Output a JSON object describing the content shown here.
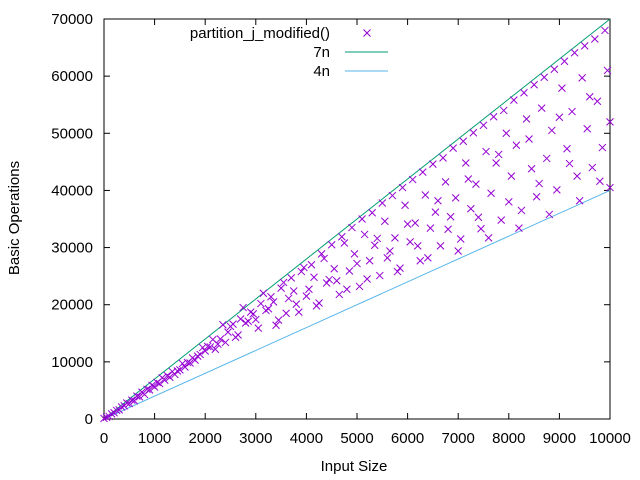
{
  "chart_data": {
    "type": "scatter",
    "title": "",
    "xlabel": "Input Size",
    "ylabel": "Basic Operations",
    "xlim": [
      0,
      10000
    ],
    "ylim": [
      0,
      70000
    ],
    "x_ticks": [
      "0",
      "1000",
      "2000",
      "3000",
      "4000",
      "5000",
      "6000",
      "7000",
      "8000",
      "9000",
      "10000"
    ],
    "y_ticks": [
      "0",
      "10000",
      "20000",
      "30000",
      "40000",
      "50000",
      "60000",
      "70000"
    ],
    "grid": false,
    "legend_position": "top-right",
    "series": [
      {
        "name": "partition_j_modified()",
        "kind": "scatter",
        "marker": "x",
        "color": "#9400d3",
        "points": [
          [
            0,
            100
          ],
          [
            100,
            450
          ],
          [
            200,
            1100
          ],
          [
            300,
            1600
          ],
          [
            400,
            2300
          ],
          [
            500,
            2700
          ],
          [
            600,
            3200
          ],
          [
            700,
            3900
          ],
          [
            800,
            4300
          ],
          [
            900,
            5100
          ],
          [
            1000,
            5600
          ],
          [
            1100,
            6200
          ],
          [
            1200,
            6800
          ],
          [
            1300,
            7300
          ],
          [
            1400,
            7800
          ],
          [
            1500,
            8600
          ],
          [
            1600,
            9100
          ],
          [
            1700,
            9800
          ],
          [
            1800,
            10300
          ],
          [
            1900,
            11300
          ],
          [
            2000,
            11900
          ],
          [
            2100,
            12600
          ],
          [
            2200,
            12200
          ],
          [
            2300,
            14000
          ],
          [
            2400,
            13400
          ],
          [
            2500,
            16200
          ],
          [
            2600,
            14300
          ],
          [
            2700,
            17500
          ],
          [
            2800,
            16800
          ],
          [
            2900,
            18700
          ],
          [
            3000,
            17400
          ],
          [
            3100,
            20200
          ],
          [
            3200,
            19000
          ],
          [
            3300,
            21400
          ],
          [
            3400,
            16400
          ],
          [
            3500,
            22900
          ],
          [
            3600,
            18500
          ],
          [
            3700,
            24700
          ],
          [
            3800,
            20100
          ],
          [
            3900,
            25800
          ],
          [
            4000,
            21500
          ],
          [
            4100,
            27000
          ],
          [
            4200,
            19800
          ],
          [
            4300,
            28900
          ],
          [
            4400,
            23800
          ],
          [
            4500,
            30500
          ],
          [
            4600,
            24200
          ],
          [
            4700,
            31900
          ],
          [
            4800,
            22700
          ],
          [
            4900,
            33500
          ],
          [
            5000,
            27200
          ],
          [
            5100,
            35000
          ],
          [
            5200,
            24500
          ],
          [
            5300,
            36100
          ],
          [
            5400,
            31600
          ],
          [
            5500,
            37800
          ],
          [
            5600,
            28200
          ],
          [
            5700,
            39100
          ],
          [
            5800,
            25800
          ],
          [
            5900,
            40500
          ],
          [
            6000,
            34100
          ],
          [
            6100,
            41900
          ],
          [
            6200,
            30300
          ],
          [
            6300,
            43200
          ],
          [
            6400,
            28200
          ],
          [
            6500,
            44600
          ],
          [
            6600,
            38200
          ],
          [
            6700,
            45700
          ],
          [
            6800,
            33200
          ],
          [
            6900,
            47400
          ],
          [
            7000,
            29400
          ],
          [
            7100,
            48600
          ],
          [
            7200,
            42000
          ],
          [
            7300,
            50100
          ],
          [
            7400,
            35300
          ],
          [
            7500,
            51400
          ],
          [
            7600,
            31700
          ],
          [
            7700,
            52900
          ],
          [
            7800,
            46300
          ],
          [
            7900,
            54000
          ],
          [
            8000,
            38000
          ],
          [
            8100,
            55800
          ],
          [
            8200,
            33400
          ],
          [
            8300,
            57100
          ],
          [
            8400,
            49000
          ],
          [
            8500,
            58500
          ],
          [
            8600,
            41200
          ],
          [
            8700,
            59800
          ],
          [
            8800,
            35800
          ],
          [
            8900,
            61200
          ],
          [
            9000,
            52800
          ],
          [
            9100,
            62600
          ],
          [
            9200,
            44700
          ],
          [
            9300,
            64100
          ],
          [
            9400,
            38200
          ],
          [
            9500,
            65300
          ],
          [
            9600,
            56400
          ],
          [
            9700,
            66500
          ],
          [
            9800,
            41600
          ],
          [
            9900,
            68000
          ],
          [
            10000,
            40500
          ],
          [
            10000,
            52000
          ],
          [
            9950,
            61000
          ],
          [
            9850,
            47500
          ],
          [
            9750,
            55600
          ],
          [
            9650,
            44000
          ],
          [
            9550,
            50800
          ],
          [
            9450,
            59700
          ],
          [
            9350,
            42500
          ],
          [
            9250,
            53800
          ],
          [
            9150,
            47300
          ],
          [
            9050,
            57900
          ],
          [
            8950,
            40100
          ],
          [
            8850,
            50500
          ],
          [
            8750,
            45600
          ],
          [
            8650,
            54400
          ],
          [
            8550,
            38900
          ],
          [
            8450,
            43800
          ],
          [
            8350,
            52500
          ],
          [
            8250,
            36500
          ],
          [
            8150,
            47900
          ],
          [
            8050,
            42500
          ],
          [
            7950,
            50000
          ],
          [
            7850,
            34800
          ],
          [
            7750,
            44800
          ],
          [
            7650,
            39500
          ],
          [
            7550,
            46800
          ],
          [
            7450,
            33300
          ],
          [
            7350,
            41100
          ],
          [
            7250,
            36800
          ],
          [
            7150,
            44800
          ],
          [
            7050,
            31500
          ],
          [
            6950,
            38700
          ],
          [
            6850,
            35400
          ],
          [
            6750,
            41500
          ],
          [
            6650,
            30300
          ],
          [
            6550,
            36200
          ],
          [
            6450,
            33400
          ],
          [
            6350,
            39200
          ],
          [
            6250,
            27700
          ],
          [
            6150,
            34300
          ],
          [
            6050,
            31000
          ],
          [
            5950,
            37400
          ],
          [
            5850,
            26400
          ],
          [
            5750,
            31700
          ],
          [
            5650,
            29400
          ],
          [
            5550,
            34600
          ],
          [
            5450,
            25100
          ],
          [
            5350,
            30400
          ],
          [
            5250,
            27700
          ],
          [
            5150,
            32300
          ],
          [
            5050,
            23200
          ],
          [
            4950,
            28900
          ],
          [
            4850,
            25900
          ],
          [
            4750,
            30800
          ],
          [
            4650,
            21800
          ],
          [
            4550,
            26300
          ],
          [
            4450,
            24400
          ],
          [
            4350,
            28100
          ],
          [
            4250,
            20300
          ],
          [
            4150,
            24800
          ],
          [
            4050,
            22700
          ],
          [
            3950,
            26500
          ],
          [
            3850,
            18700
          ],
          [
            3750,
            22400
          ],
          [
            3650,
            21100
          ],
          [
            3550,
            23900
          ],
          [
            3450,
            17300
          ],
          [
            3350,
            20500
          ],
          [
            3250,
            19300
          ],
          [
            3150,
            22000
          ],
          [
            3050,
            15900
          ],
          [
            2950,
            18400
          ],
          [
            2850,
            17100
          ],
          [
            2750,
            19500
          ],
          [
            2650,
            14700
          ],
          [
            2550,
            16600
          ],
          [
            2450,
            15200
          ],
          [
            2350,
            16500
          ],
          [
            2250,
            13100
          ],
          [
            2150,
            13900
          ],
          [
            2050,
            12700
          ],
          [
            1950,
            12500
          ],
          [
            1850,
            11000
          ],
          [
            1750,
            10700
          ],
          [
            1650,
            9900
          ],
          [
            1550,
            9700
          ],
          [
            1450,
            8400
          ],
          [
            1350,
            8300
          ],
          [
            1250,
            7600
          ],
          [
            1150,
            7200
          ],
          [
            1050,
            6400
          ],
          [
            950,
            5900
          ],
          [
            850,
            5200
          ],
          [
            750,
            4700
          ],
          [
            650,
            4000
          ],
          [
            550,
            3300
          ],
          [
            450,
            2800
          ],
          [
            350,
            2100
          ],
          [
            250,
            1500
          ],
          [
            150,
            900
          ],
          [
            50,
            300
          ]
        ]
      },
      {
        "name": "7n",
        "kind": "line",
        "color": "#009e73",
        "slope": 7,
        "x": [
          0,
          10000
        ],
        "y": [
          0,
          70000
        ]
      },
      {
        "name": "4n",
        "kind": "line",
        "color": "#56b4e9",
        "slope": 4,
        "x": [
          0,
          10000
        ],
        "y": [
          0,
          40000
        ]
      }
    ]
  }
}
